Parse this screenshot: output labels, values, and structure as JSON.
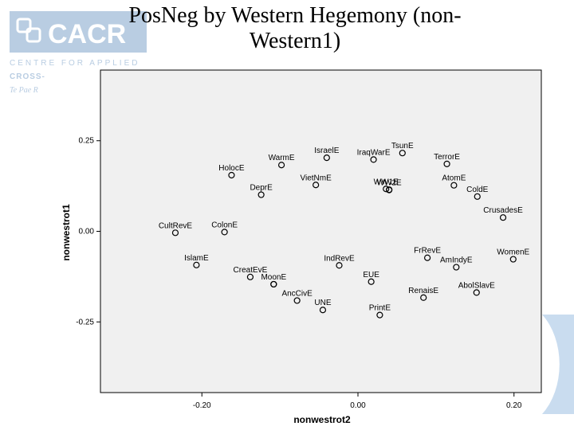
{
  "slide": {
    "title": "PosNeg by Western Hegemony (non-Western1)"
  },
  "logo": {
    "text": "CACR",
    "line1": "CENTRE FOR APPLIED",
    "line2": "CROSS-",
    "line3": "Te Pae R"
  },
  "colors": {
    "plot_bg": "#f0f0f0",
    "logo_blue": "#b9cde2",
    "deco_blue": "#c9dcef"
  },
  "chart_data": {
    "type": "scatter",
    "xlabel": "nonwestrot2",
    "ylabel": "nonwestrot1",
    "xlim": [
      -0.33,
      0.235
    ],
    "ylim": [
      -0.445,
      0.445
    ],
    "xticks": [
      -0.2,
      0.0,
      0.2
    ],
    "xtick_labels": [
      "-0.20",
      "0.00",
      "0.20"
    ],
    "yticks": [
      0.25,
      0.0,
      -0.25
    ],
    "ytick_labels": [
      "0.25",
      "0.00",
      "-0.25"
    ],
    "grid": false,
    "points": [
      {
        "label": "TsunE",
        "x": 0.057,
        "y": 0.216
      },
      {
        "label": "IsraelE",
        "x": -0.04,
        "y": 0.203
      },
      {
        "label": "TerrorE",
        "x": 0.114,
        "y": 0.186
      },
      {
        "label": "WarmE",
        "x": -0.098,
        "y": 0.183
      },
      {
        "label": "IraqWarE",
        "x": 0.02,
        "y": 0.198
      },
      {
        "label": "HolocE",
        "x": -0.162,
        "y": 0.155
      },
      {
        "label": "VietNmE",
        "x": -0.054,
        "y": 0.128
      },
      {
        "label": "AtomE",
        "x": 0.123,
        "y": 0.127
      },
      {
        "label": "WW1E",
        "x": 0.036,
        "y": 0.117
      },
      {
        "label": "",
        "x": 0.04,
        "y": 0.115
      },
      {
        "label": "DeprE",
        "x": -0.124,
        "y": 0.101
      },
      {
        "label": "ColdE",
        "x": 0.153,
        "y": 0.096
      },
      {
        "label": "WW2E",
        "x": 0.04,
        "y": 0.114
      },
      {
        "label": "CrusadesE",
        "x": 0.186,
        "y": 0.038
      },
      {
        "label": "CultRevE",
        "x": -0.234,
        "y": -0.004
      },
      {
        "label": "ColonE",
        "x": -0.171,
        "y": -0.002
      },
      {
        "label": "FrRevE",
        "x": 0.089,
        "y": -0.073
      },
      {
        "label": "WomenE",
        "x": 0.199,
        "y": -0.077
      },
      {
        "label": "IslamE",
        "x": -0.207,
        "y": -0.093
      },
      {
        "label": "IndRevE",
        "x": -0.024,
        "y": -0.094
      },
      {
        "label": "AmIndyE",
        "x": 0.126,
        "y": -0.099
      },
      {
        "label": "CreatEvE",
        "x": -0.138,
        "y": -0.126
      },
      {
        "label": "",
        "x": -0.108,
        "y": -0.146
      },
      {
        "label": "MoonE",
        "x": -0.108,
        "y": -0.146
      },
      {
        "label": "EUE",
        "x": 0.017,
        "y": -0.139
      },
      {
        "label": "AbolSlavE",
        "x": 0.152,
        "y": -0.169
      },
      {
        "label": "RenaisE",
        "x": 0.084,
        "y": -0.183
      },
      {
        "label": "AncCivE",
        "x": -0.078,
        "y": -0.191
      },
      {
        "label": "UNE",
        "x": -0.045,
        "y": -0.217
      },
      {
        "label": "PrintE",
        "x": 0.028,
        "y": -0.231
      }
    ]
  }
}
